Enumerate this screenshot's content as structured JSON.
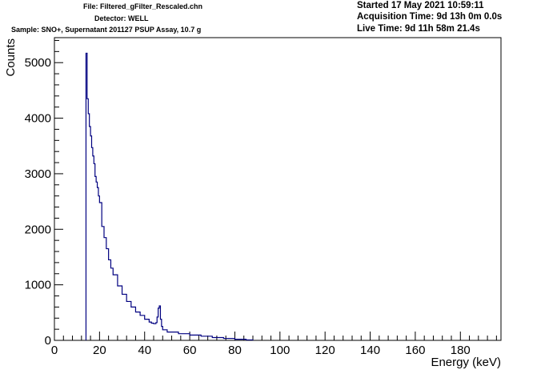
{
  "header": {
    "file": "File: Filtered_gFilter_Rescaled.chn",
    "detector": "Detector: WELL",
    "sample": "Sample: SNO+, Supernatant 201127 PSUP Assay, 10.7 g",
    "started": "Started 17 May 2021 10:59:11",
    "acquisition_time": "Acquisition Time: 9d 13h 0m 0.0s",
    "live_time": "Live Time: 9d 11h 58m 21.4s"
  },
  "chart_data": {
    "type": "line",
    "title": "",
    "xlabel": "Energy (keV)",
    "ylabel": "Counts",
    "xlim": [
      0,
      198
    ],
    "ylim": [
      0,
      5450
    ],
    "x_ticks": [
      0,
      20,
      40,
      60,
      80,
      100,
      120,
      140,
      160,
      180
    ],
    "y_ticks": [
      0,
      1000,
      2000,
      3000,
      4000,
      5000
    ],
    "grid": false,
    "line_color": "#000080",
    "series": [
      {
        "x": [
          14,
          14.5,
          15,
          15.5,
          16,
          16.5,
          17,
          17.5,
          18,
          18.5,
          19,
          19.5,
          20,
          21,
          22,
          23,
          24,
          25,
          26,
          28,
          30,
          32,
          34,
          36,
          38,
          40,
          42,
          43,
          44,
          45,
          45.5,
          46,
          46.5,
          47,
          47.5,
          48,
          50,
          55,
          60,
          65,
          70,
          75,
          80,
          85,
          88
        ],
        "y": [
          5170,
          4350,
          4080,
          3850,
          3680,
          3470,
          3320,
          3180,
          2950,
          2850,
          2750,
          2600,
          2480,
          2050,
          1850,
          1650,
          1450,
          1300,
          1180,
          980,
          830,
          700,
          600,
          510,
          450,
          380,
          330,
          310,
          300,
          320,
          420,
          580,
          620,
          380,
          250,
          190,
          150,
          120,
          95,
          75,
          50,
          35,
          20,
          8,
          0
        ]
      }
    ]
  }
}
